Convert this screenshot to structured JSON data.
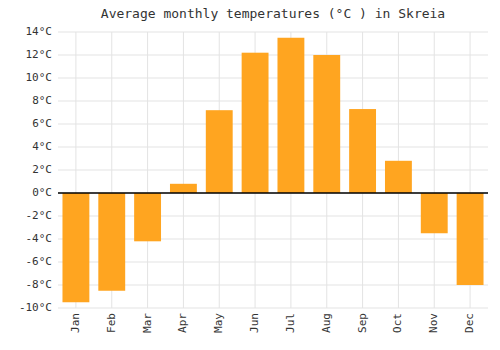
{
  "chart_data": {
    "type": "bar",
    "title": "Average monthly temperatures (°C ) in Skreia",
    "categories": [
      "Jan",
      "Feb",
      "Mar",
      "Apr",
      "May",
      "Jun",
      "Jul",
      "Aug",
      "Sep",
      "Oct",
      "Nov",
      "Dec"
    ],
    "values": [
      -9.5,
      -8.5,
      -4.2,
      0.8,
      7.2,
      12.2,
      13.5,
      12.0,
      7.3,
      2.8,
      -3.5,
      -8.0
    ],
    "color": "#FFA520",
    "ylim": [
      -10,
      14
    ],
    "yticks": [
      {
        "value": -10,
        "label": "-10°C"
      },
      {
        "value": -8,
        "label": "-8°C"
      },
      {
        "value": -6,
        "label": "-6°C"
      },
      {
        "value": -4,
        "label": "-4°C"
      },
      {
        "value": -2,
        "label": "-2°C"
      },
      {
        "value": 0,
        "label": "0°C"
      },
      {
        "value": 2,
        "label": "2°C"
      },
      {
        "value": 4,
        "label": "4°C"
      },
      {
        "value": 6,
        "label": "6°C"
      },
      {
        "value": 8,
        "label": "8°C"
      },
      {
        "value": 10,
        "label": "10°C"
      },
      {
        "value": 12,
        "label": "12°C"
      },
      {
        "value": 14,
        "label": "14°C"
      }
    ],
    "grid": true
  }
}
